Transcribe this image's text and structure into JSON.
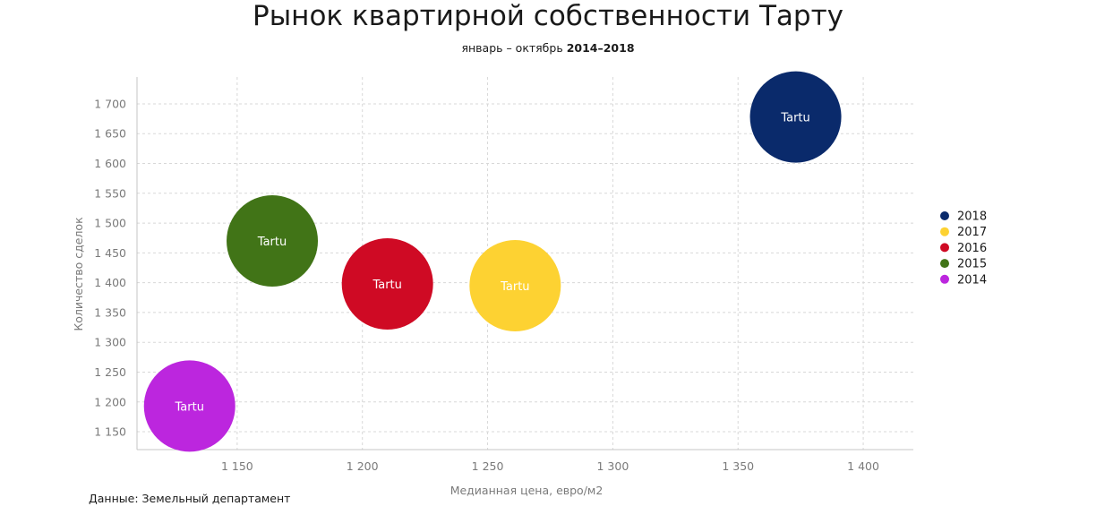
{
  "title": "Рынок квартирной собственности Тарту",
  "subtitle_prefix": "январь – октябрь",
  "subtitle_years": "2014–2018",
  "source": "Данные: Земельный департамент",
  "chart_data": {
    "type": "scatter",
    "title": "Рынок квартирной собственности Тарту",
    "subtitle": "январь – октябрь 2014–2018",
    "xlabel": "Медианная цена, евро/м2",
    "ylabel": "Количество сделок",
    "xlim": [
      1110,
      1420
    ],
    "ylim": [
      1120,
      1745
    ],
    "x_ticks": [
      1150,
      1200,
      1250,
      1300,
      1350,
      1400
    ],
    "x_tick_labels": [
      "1 150",
      "1 200",
      "1 250",
      "1 300",
      "1 350",
      "1 400"
    ],
    "y_ticks": [
      1150,
      1200,
      1250,
      1300,
      1350,
      1400,
      1450,
      1500,
      1550,
      1600,
      1650,
      1700
    ],
    "y_tick_labels": [
      "1 150",
      "1 200",
      "1 250",
      "1 300",
      "1 350",
      "1 400",
      "1 450",
      "1 500",
      "1 550",
      "1 600",
      "1 650",
      "1 700"
    ],
    "grid": true,
    "legend_position": "right",
    "series": [
      {
        "name": "2018",
        "color": "#0a2a6b",
        "points": [
          {
            "x": 1373,
            "y": 1678,
            "label": "Tartu"
          }
        ]
      },
      {
        "name": "2017",
        "color": "#fdd232",
        "points": [
          {
            "x": 1261,
            "y": 1395,
            "label": "Tartu"
          }
        ]
      },
      {
        "name": "2016",
        "color": "#cf0a24",
        "points": [
          {
            "x": 1210,
            "y": 1398,
            "label": "Tartu"
          }
        ]
      },
      {
        "name": "2015",
        "color": "#417417",
        "points": [
          {
            "x": 1164,
            "y": 1470,
            "label": "Tartu"
          }
        ]
      },
      {
        "name": "2014",
        "color": "#bc26de",
        "points": [
          {
            "x": 1131,
            "y": 1193,
            "label": "Tartu"
          }
        ]
      }
    ]
  }
}
